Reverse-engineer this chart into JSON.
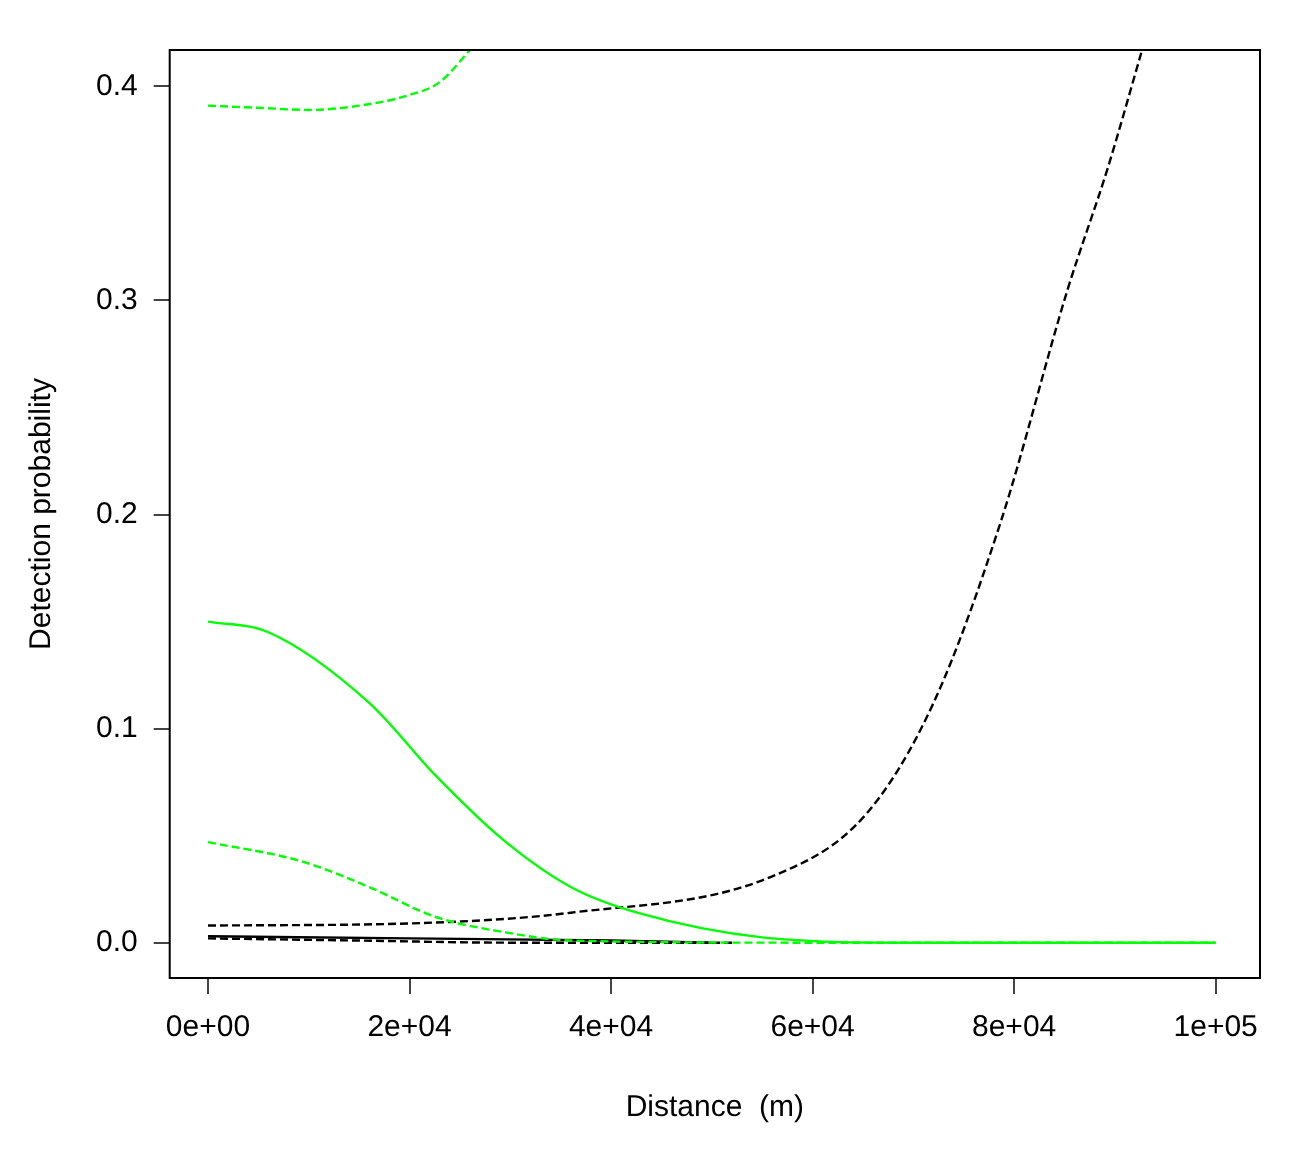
{
  "chart_data": {
    "type": "line",
    "xlabel": "Distance  (m)",
    "ylabel": "Detection probability",
    "xlim": [
      -3800,
      104400
    ],
    "ylim": [
      -0.0165,
      0.417
    ],
    "xticks": [
      {
        "value": 0,
        "label": "0e+00"
      },
      {
        "value": 20000,
        "label": "2e+04"
      },
      {
        "value": 40000,
        "label": "4e+04"
      },
      {
        "value": 60000,
        "label": "6e+04"
      },
      {
        "value": 80000,
        "label": "8e+04"
      },
      {
        "value": 100000,
        "label": "1e+05"
      }
    ],
    "yticks": [
      {
        "value": 0,
        "label": "0.0"
      },
      {
        "value": 0.1,
        "label": "0.1"
      },
      {
        "value": 0.2,
        "label": "0.2"
      },
      {
        "value": 0.3,
        "label": "0.3"
      },
      {
        "value": 0.4,
        "label": "0.4"
      }
    ],
    "grid": false,
    "legend": false,
    "marker": "none",
    "series": [
      {
        "color": "#00ff00",
        "line_style": "dashed",
        "x": [
          0,
          5000,
          10000,
          15000,
          20000,
          23000,
          26000
        ],
        "values": [
          0.391,
          0.39,
          0.389,
          0.391,
          0.396,
          0.402,
          0.417
        ]
      },
      {
        "color": "#00ff00",
        "line_style": "solid",
        "x": [
          0,
          6000,
          16000,
          22600,
          29300,
          36000,
          42600,
          56000,
          70000,
          100000
        ],
        "values": [
          0.15,
          0.145,
          0.112,
          0.078,
          0.048,
          0.026,
          0.014,
          0.002,
          0,
          0
        ]
      },
      {
        "color": "#00ff00",
        "line_style": "dashed",
        "x": [
          0,
          9300,
          16000,
          22600,
          29300,
          36000,
          60000,
          100000
        ],
        "values": [
          0.047,
          0.038,
          0.026,
          0.012,
          0.005,
          0.001,
          0,
          0
        ]
      },
      {
        "color": "#000000",
        "line_style": "dashed",
        "x": [
          0,
          20000,
          36000,
          56000,
          65300,
          72000,
          78700,
          85300,
          89300,
          92700
        ],
        "values": [
          0.008,
          0.009,
          0.014,
          0.031,
          0.06,
          0.112,
          0.197,
          0.305,
          0.362,
          0.417
        ]
      },
      {
        "color": "#000000",
        "line_style": "solid",
        "x": [
          0,
          20000,
          40000,
          50000
        ],
        "values": [
          0.003,
          0.002,
          0.001,
          0
        ]
      },
      {
        "color": "#000000",
        "line_style": "dashed",
        "x": [
          0,
          15000,
          30000,
          52000
        ],
        "values": [
          0.002,
          0.001,
          0,
          0
        ]
      }
    ]
  }
}
